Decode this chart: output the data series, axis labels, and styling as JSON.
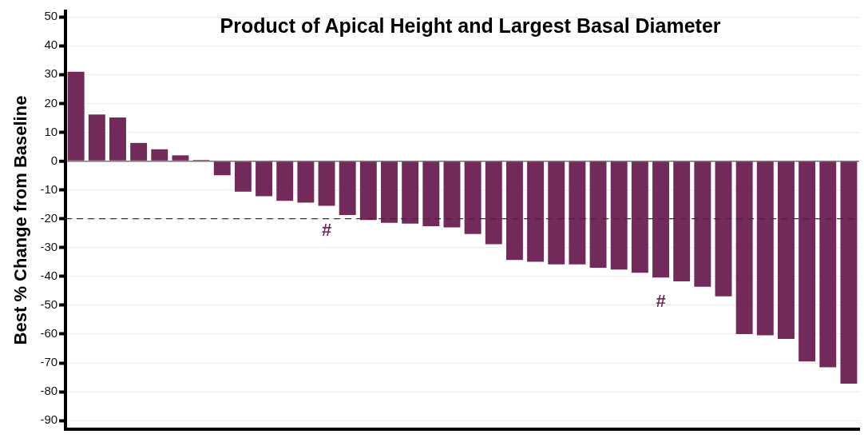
{
  "chart_data": {
    "type": "bar",
    "title": "Product of Apical Height and Largest Basal Diameter",
    "ylabel": "Best % Change from Baseline",
    "categories": [
      null,
      null,
      null,
      null,
      null,
      null,
      null,
      null,
      null,
      null,
      null,
      null,
      null,
      null,
      null,
      null,
      null,
      null,
      null,
      null,
      null,
      null,
      null,
      null,
      null,
      null,
      null,
      null,
      null,
      null,
      null,
      null,
      null,
      null,
      null,
      null,
      null,
      null
    ],
    "values": [
      31,
      16.2,
      15.1,
      6.3,
      4.1,
      2,
      0.4,
      -4.9,
      -10.6,
      -12.2,
      -13.8,
      -14.4,
      -15.5,
      -18.7,
      -20.4,
      -21.4,
      -21.7,
      -22.6,
      -23,
      -25.3,
      -28.8,
      -34.3,
      -34.9,
      -35.8,
      -35.8,
      -37,
      -37.6,
      -38.7,
      -40.4,
      -41.7,
      -43.6,
      -46.9,
      -60,
      -60.4,
      -61.7,
      -69.5,
      -71.5,
      -77.2
    ],
    "value_labels": [
      null,
      null,
      null,
      null,
      null,
      null,
      null,
      null,
      null,
      null,
      null,
      null,
      "#",
      null,
      null,
      null,
      null,
      null,
      null,
      null,
      null,
      null,
      null,
      null,
      null,
      null,
      null,
      null,
      "#",
      null,
      null,
      null,
      null,
      null,
      null,
      null,
      null,
      null
    ],
    "color": "#722a5b",
    "ylim": [
      -93,
      52
    ],
    "yticks": [
      -90,
      -80,
      -70,
      -60,
      -50,
      -40,
      -30,
      -20,
      -10,
      0,
      10,
      20,
      30,
      40,
      50
    ],
    "ref_lines": [
      {
        "axis": "y",
        "value": -20,
        "line_style": "dashed",
        "color": "#333333"
      }
    ],
    "grid": "y",
    "tick_labels": "y"
  }
}
